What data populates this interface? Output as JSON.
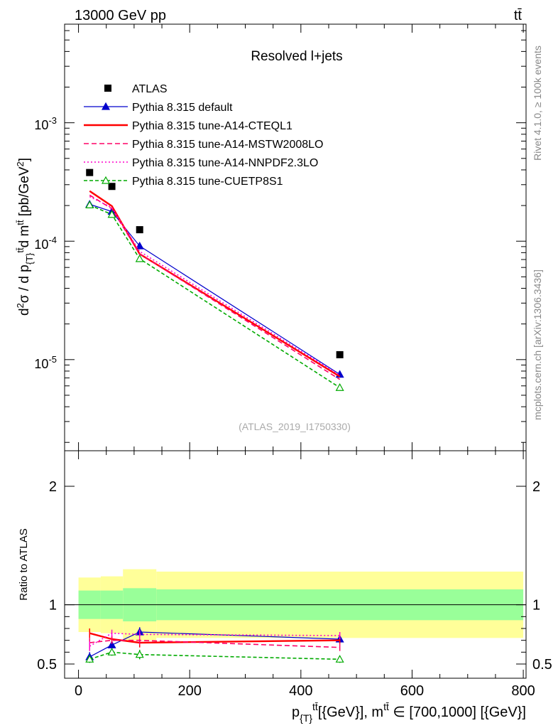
{
  "header": {
    "left": "13000 GeV pp",
    "right": "tt̄"
  },
  "side_labels": {
    "rivet": "Rivet 4.1.0, ≥ 100k events",
    "mcplots": "mcplots.cern.ch [arXiv:1306.3436]"
  },
  "chart_data": {
    "type": "scatter",
    "title": "Resolved l+jets",
    "watermark": "(ATLAS_2019_I1750330)",
    "xlabel": "p_{T}^{tt̄} [{GeV}], m^{tt̄} ∈ [700,1000] [{GeV}]",
    "ylabel": "d²σ / d p_{T}^{tt̄} d m^{tt̄} [pb/GeV²]",
    "ratio_ylabel": "Ratio to ATLAS",
    "x_range": [
      -25,
      805
    ],
    "y_range_log": [
      1.7e-06,
      0.0068
    ],
    "ratio_range": [
      0.38,
      2.3
    ],
    "x_ticks": [
      "0",
      "200",
      "400",
      "600",
      "800"
    ],
    "y_ticks": [
      "10^{-3}",
      "10^{-4}",
      "10^{-5}"
    ],
    "ratio_ticks": [
      "0.5",
      "1",
      "2"
    ],
    "bins": [
      [
        0,
        40
      ],
      [
        40,
        80
      ],
      [
        80,
        140
      ],
      [
        140,
        800
      ]
    ],
    "x_points": [
      20,
      60,
      110,
      470
    ],
    "atlas": {
      "name": "ATLAS",
      "values": [
        0.00038,
        0.00029,
        0.000125,
        1.1e-05
      ],
      "band_stat": [
        0.12,
        0.12,
        0.14,
        0.13
      ],
      "band_total": [
        0.23,
        0.24,
        0.3,
        0.28
      ]
    },
    "series": [
      {
        "name": "Pythia 8.315 default",
        "color": "#0000cc",
        "dash": "",
        "marker": "triangle-filled",
        "values": [
          0.000205,
          0.000178,
          9.1e-05,
          7.5e-06
        ],
        "ratio": [
          0.56,
          0.66,
          0.77,
          0.71
        ],
        "ratio_err": [
          0.04,
          0.03,
          0.04,
          0.03
        ]
      },
      {
        "name": "Pythia 8.315 tune-A14-CTEQL1",
        "color": "#ff0000",
        "dash": "",
        "marker": "none",
        "values": [
          0.000265,
          0.000198,
          7.8e-05,
          7.2e-06
        ],
        "ratio": [
          0.76,
          0.71,
          0.68,
          0.7
        ],
        "ratio_err": [
          0.04,
          0.03,
          0.04,
          0.03
        ]
      },
      {
        "name": "Pythia 8.315 tune-A14-MSTW2008LO",
        "color": "#ff0066",
        "dash": "7,4",
        "marker": "none",
        "values": [
          0.000245,
          0.000188,
          7.8e-05,
          6.8e-06
        ],
        "ratio": [
          0.68,
          0.7,
          0.7,
          0.64
        ],
        "ratio_err": [
          0.04,
          0.03,
          0.04,
          0.03
        ]
      },
      {
        "name": "Pythia 8.315 tune-A14-NNPDF2.3LO",
        "color": "#ff00cc",
        "dash": "2,3",
        "marker": "none",
        "values": [
          0.000238,
          0.000192,
          8.2e-05,
          7.4e-06
        ],
        "ratio": [
          0.65,
          0.76,
          0.75,
          0.74
        ],
        "ratio_err": [
          0.04,
          0.03,
          0.04,
          0.03
        ]
      },
      {
        "name": "Pythia 8.315 tune-CUETP8S1",
        "color": "#00aa00",
        "dash": "5,3",
        "marker": "triangle-open",
        "values": [
          0.000202,
          0.000168,
          7.1e-05,
          5.8e-06
        ],
        "ratio": [
          0.54,
          0.6,
          0.58,
          0.54
        ],
        "ratio_err": [
          0.03,
          0.03,
          0.04,
          0.03
        ]
      }
    ]
  }
}
